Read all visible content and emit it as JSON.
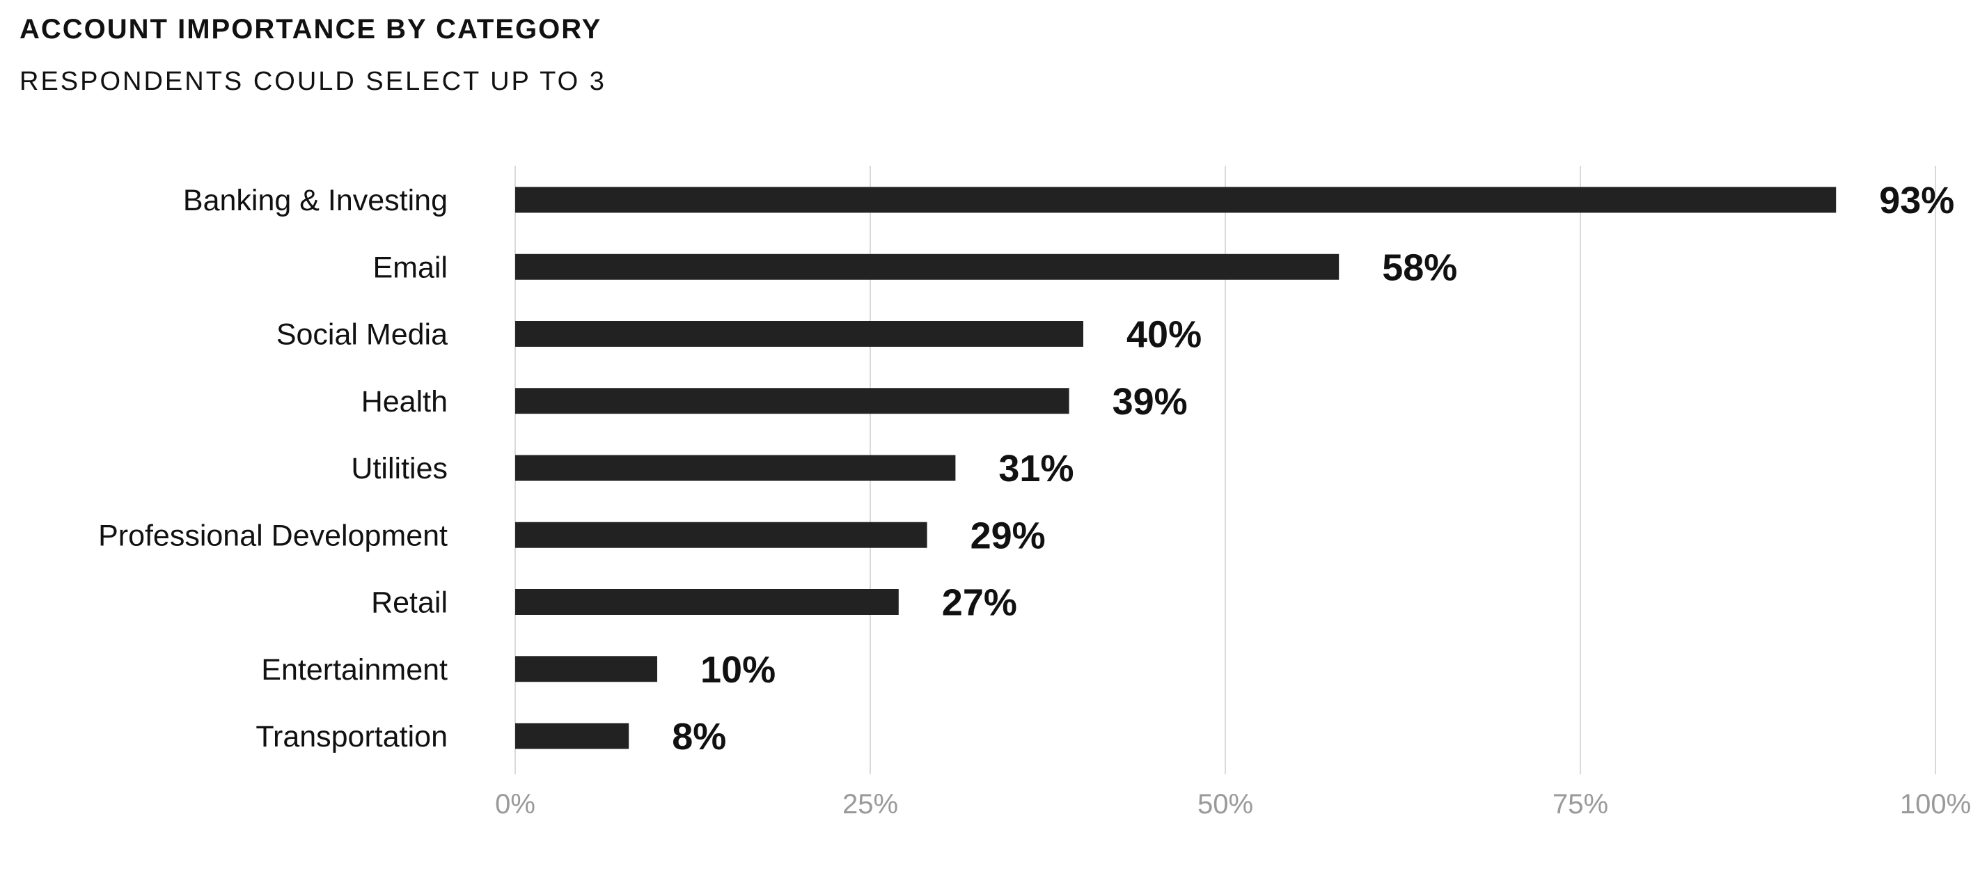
{
  "colors": {
    "bar": "#222222",
    "grid": "#d9d9d9",
    "tick_text": "#9a9a9a",
    "text": "#111111",
    "background": "#ffffff"
  },
  "chart_data": {
    "type": "bar",
    "orientation": "horizontal",
    "title": "ACCOUNT IMPORTANCE BY CATEGORY",
    "subtitle": "RESPONDENTS COULD SELECT UP TO 3",
    "categories": [
      "Banking & Investing",
      "Email",
      "Social Media",
      "Health",
      "Utilities",
      "Professional Development",
      "Retail",
      "Entertainment",
      "Transportation"
    ],
    "values": [
      93,
      58,
      40,
      39,
      31,
      29,
      27,
      10,
      8
    ],
    "value_labels": [
      "93%",
      "58%",
      "40%",
      "39%",
      "31%",
      "29%",
      "27%",
      "10%",
      "8%"
    ],
    "xlim": [
      0,
      100
    ],
    "xticks": [
      0,
      25,
      50,
      75,
      100
    ],
    "xtick_labels": [
      "0%",
      "25%",
      "50%",
      "75%",
      "100%"
    ],
    "grid": "vertical",
    "legend": "none"
  }
}
